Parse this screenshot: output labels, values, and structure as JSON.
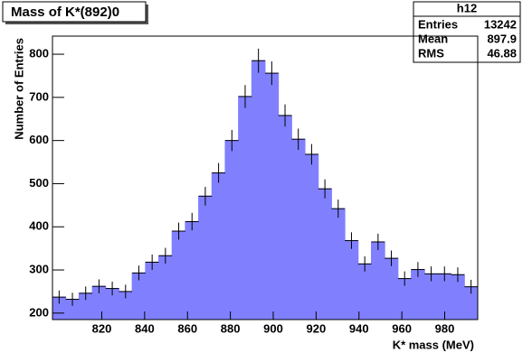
{
  "chart_data": {
    "type": "histogram",
    "title": "Mass of K*(892)0",
    "x_label": "K* mass (MeV)",
    "y_label": "Number of Entries",
    "bins": [
      797,
      803.2,
      809.4,
      815.6,
      821.8,
      828,
      834.2,
      840.4,
      846.6,
      852.8,
      859,
      865.2,
      871.4,
      877.6,
      883.8,
      890,
      896.2,
      902.4,
      908.6,
      914.8,
      921,
      927.2,
      933.4,
      939.6,
      945.8,
      952,
      958.2,
      964.4,
      970.6,
      976.8,
      983,
      989.2,
      995.4
    ],
    "counts": [
      237,
      232,
      246,
      262,
      257,
      250,
      293,
      318,
      333,
      390,
      412,
      471,
      525,
      600,
      702,
      785,
      756,
      658,
      603,
      568,
      488,
      442,
      368,
      314,
      365,
      327,
      280,
      301,
      291,
      291,
      289,
      261
    ],
    "errors": [
      15.4,
      15.2,
      15.7,
      16.2,
      16.0,
      15.8,
      17.1,
      17.8,
      18.2,
      19.7,
      20.3,
      21.7,
      22.9,
      24.5,
      26.5,
      28.0,
      27.5,
      25.7,
      24.6,
      23.8,
      22.1,
      21.0,
      19.2,
      17.7,
      19.1,
      18.1,
      16.7,
      17.3,
      17.1,
      17.1,
      17.0,
      16.2
    ],
    "color": "#8080ff",
    "xlim": [
      797,
      995.4
    ],
    "xticks": [
      820,
      840,
      860,
      880,
      900,
      920,
      940,
      960,
      980
    ],
    "ylim": [
      185,
      842
    ],
    "yticks": [
      200,
      300,
      400,
      500,
      600,
      700,
      800
    ],
    "stats": {
      "name": "h12",
      "rows": [
        [
          "Entries",
          "13242"
        ],
        [
          "Mean",
          "897.9"
        ],
        [
          "RMS",
          "46.88"
        ]
      ]
    }
  }
}
